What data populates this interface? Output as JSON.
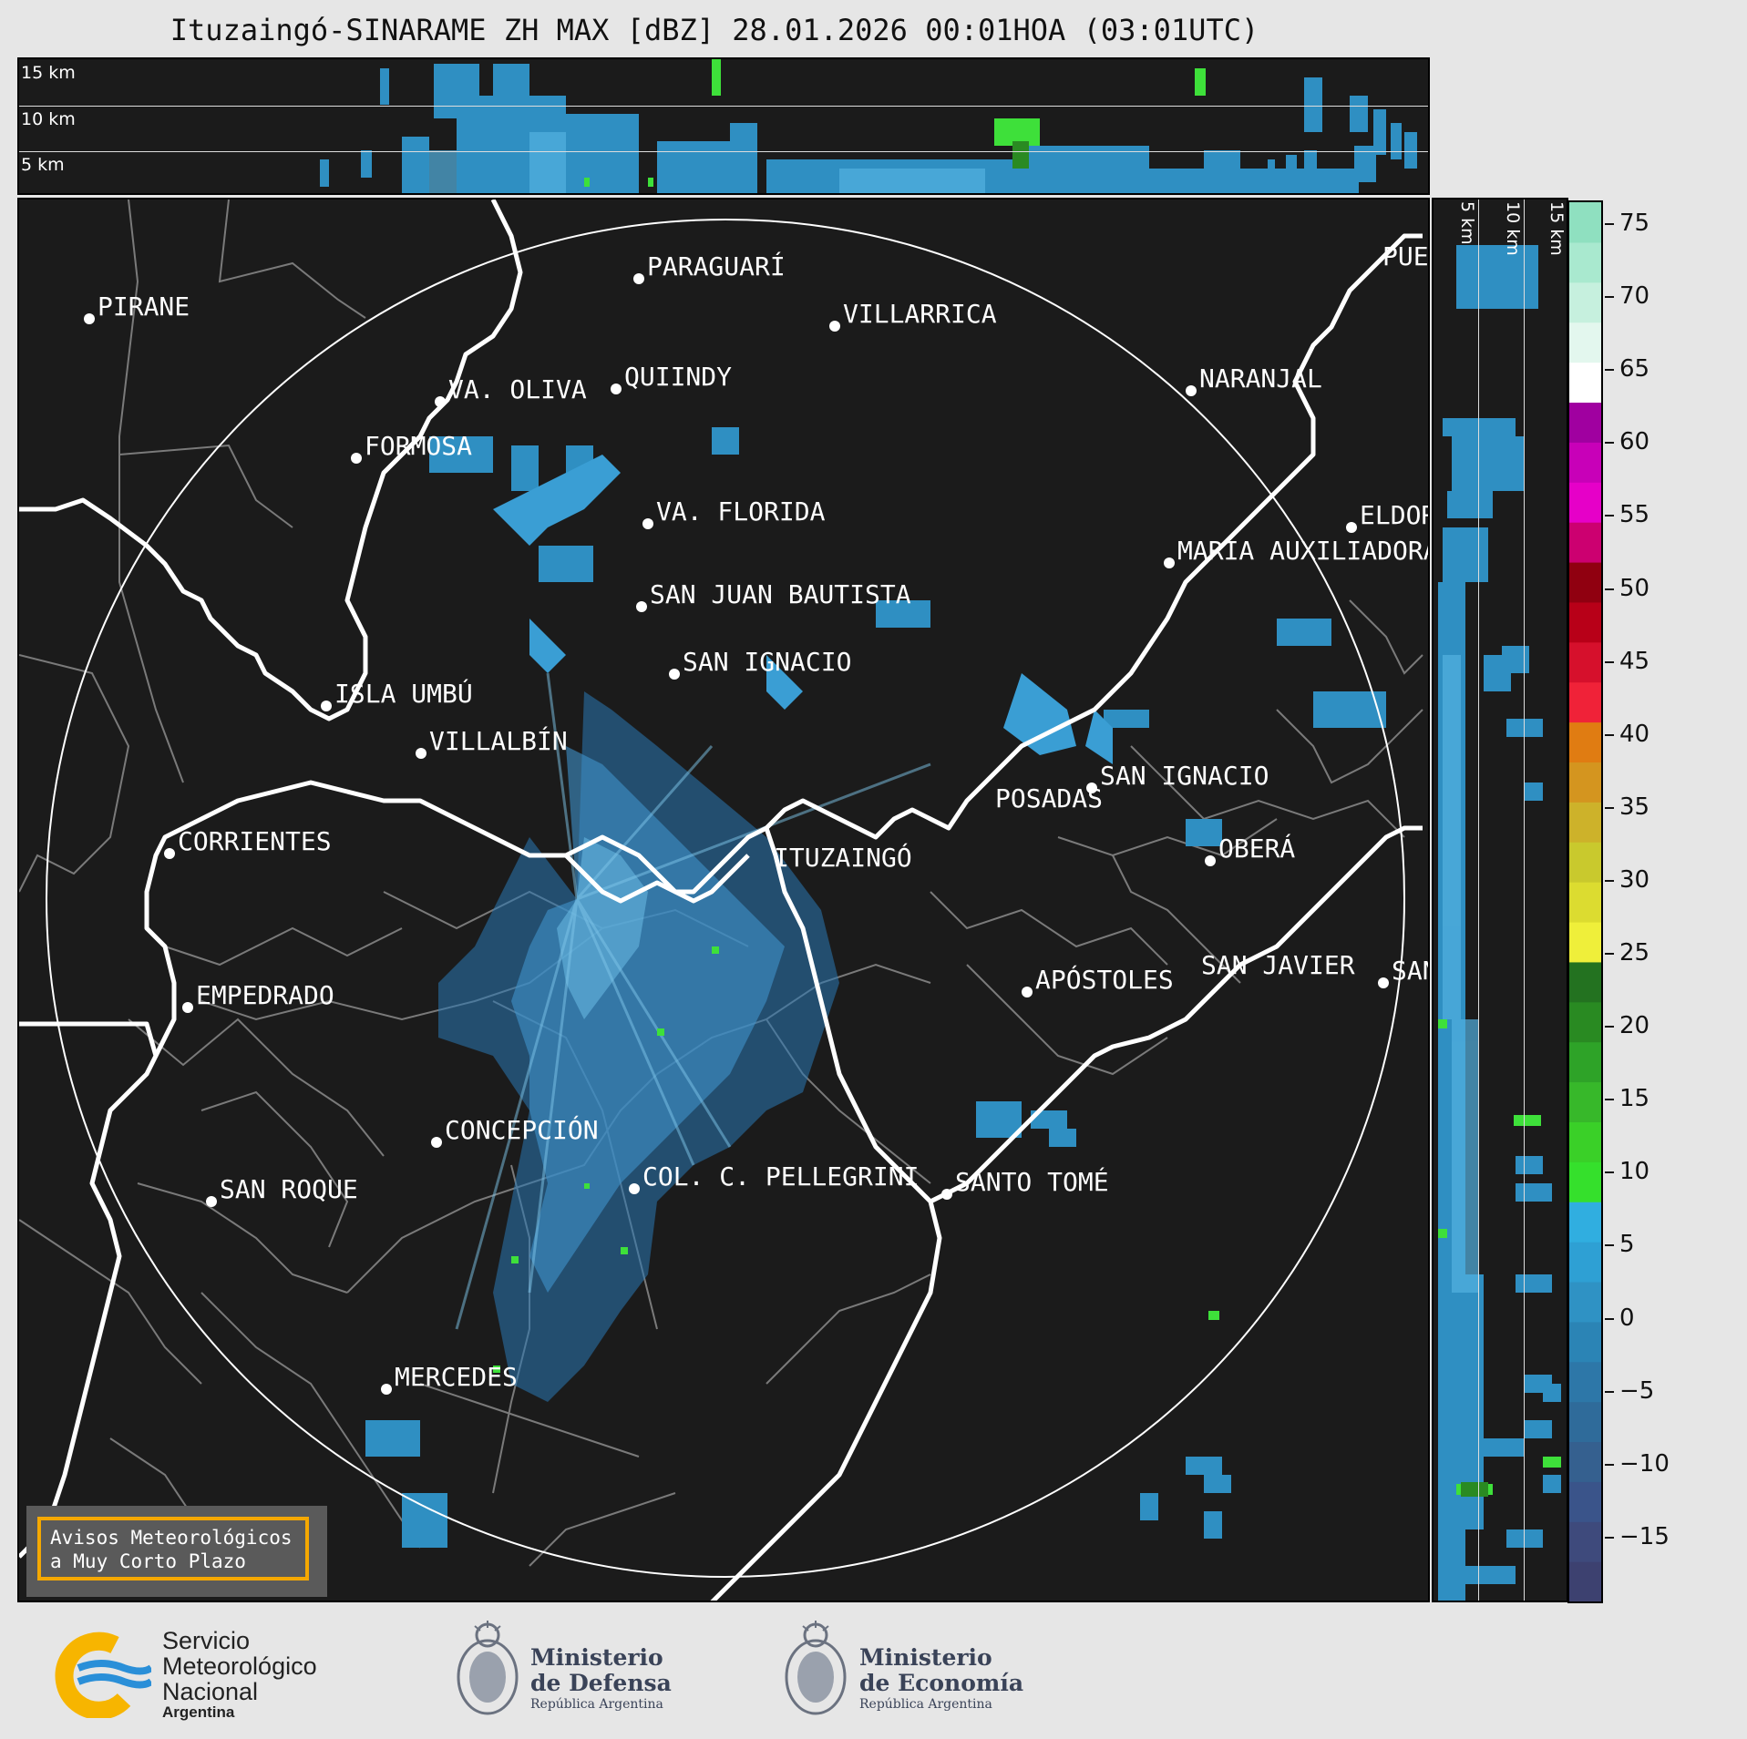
{
  "title": "Ituzaingó-SINARAME ZH MAX [dBZ] 28.01.2026 00:01HOA (03:01UTC)",
  "top_panel": {
    "altitude_labels": [
      "15 km",
      "10 km",
      "5 km"
    ]
  },
  "side_panel": {
    "altitude_labels": [
      "5 km",
      "10 km",
      "15 km"
    ]
  },
  "cities": [
    {
      "name": "PIRANE"
    },
    {
      "name": "PARAGUARÍ"
    },
    {
      "name": "VILLARRICA"
    },
    {
      "name": "VA. OLIVA"
    },
    {
      "name": "QUIINDY"
    },
    {
      "name": "NARANJAL"
    },
    {
      "name": "FORMOSA"
    },
    {
      "name": "VA. FLORIDA"
    },
    {
      "name": "ELDORADO"
    },
    {
      "name": "MARÍA AUXILIADORA"
    },
    {
      "name": "SAN JUAN BAUTISTA"
    },
    {
      "name": "SAN IGNACIO"
    },
    {
      "name": "ISLA UMBÚ"
    },
    {
      "name": "VILLALBÍN"
    },
    {
      "name": "SAN IGNACIO"
    },
    {
      "name": "POSADAS"
    },
    {
      "name": "CORRIENTES"
    },
    {
      "name": "ITUZAINGÓ"
    },
    {
      "name": "OBERÁ"
    },
    {
      "name": "EMPEDRADO"
    },
    {
      "name": "APÓSTOLES"
    },
    {
      "name": "SAN JAVIER"
    },
    {
      "name": "SAN"
    },
    {
      "name": "CONCEPCIÓN"
    },
    {
      "name": "COL. C. PELLEGRINI"
    },
    {
      "name": "SANTO TOMÉ"
    },
    {
      "name": "SAN ROQUE"
    },
    {
      "name": "MERCEDES"
    },
    {
      "name": "PUERTO"
    }
  ],
  "colorbar": {
    "unit": "dBZ",
    "ticks": [
      "75",
      "70",
      "65",
      "60",
      "55",
      "50",
      "45",
      "40",
      "35",
      "30",
      "25",
      "20",
      "15",
      "10",
      "5",
      "0",
      "−5",
      "−10",
      "−15"
    ],
    "colors": [
      "#3d4170",
      "#3e4a7c",
      "#3a548a",
      "#35608f",
      "#2f6b9a",
      "#2d77a8",
      "#2b84b5",
      "#2f92c4",
      "#2ea0d4",
      "#30aee0",
      "#35e02c",
      "#3ad028",
      "#37b82a",
      "#2ea328",
      "#298a22",
      "#237220",
      "#efef3a",
      "#dcdc30",
      "#c9c92d",
      "#cdb22a",
      "#d4951f",
      "#e07c12",
      "#f02238",
      "#d6102c",
      "#b80018",
      "#900010",
      "#cc0070",
      "#e600c8",
      "#c800b8",
      "#a000a0",
      "#ffffff",
      "#e3f7ee",
      "#c6f0de",
      "#a9e9cf",
      "#8fe0c0"
    ]
  },
  "notice": {
    "line1": "Avisos Meteorológicos",
    "line2": "a Muy Corto Plazo"
  },
  "logos": {
    "smn": {
      "line1": "Servicio",
      "line2": "Meteorológico",
      "line3": "Nacional",
      "line4": "Argentina",
      "icon": "smn-logo-icon",
      "blue": "#2a8fd8",
      "yellow": "#f7b500"
    },
    "defensa": {
      "line1": "Ministerio",
      "line2": "de Defensa",
      "line3": "República Argentina",
      "icon": "argentine-coat-of-arms-icon"
    },
    "economia": {
      "line1": "Ministerio",
      "line2": "de Economía",
      "line3": "República Argentina",
      "icon": "argentine-coat-of-arms-icon"
    }
  }
}
